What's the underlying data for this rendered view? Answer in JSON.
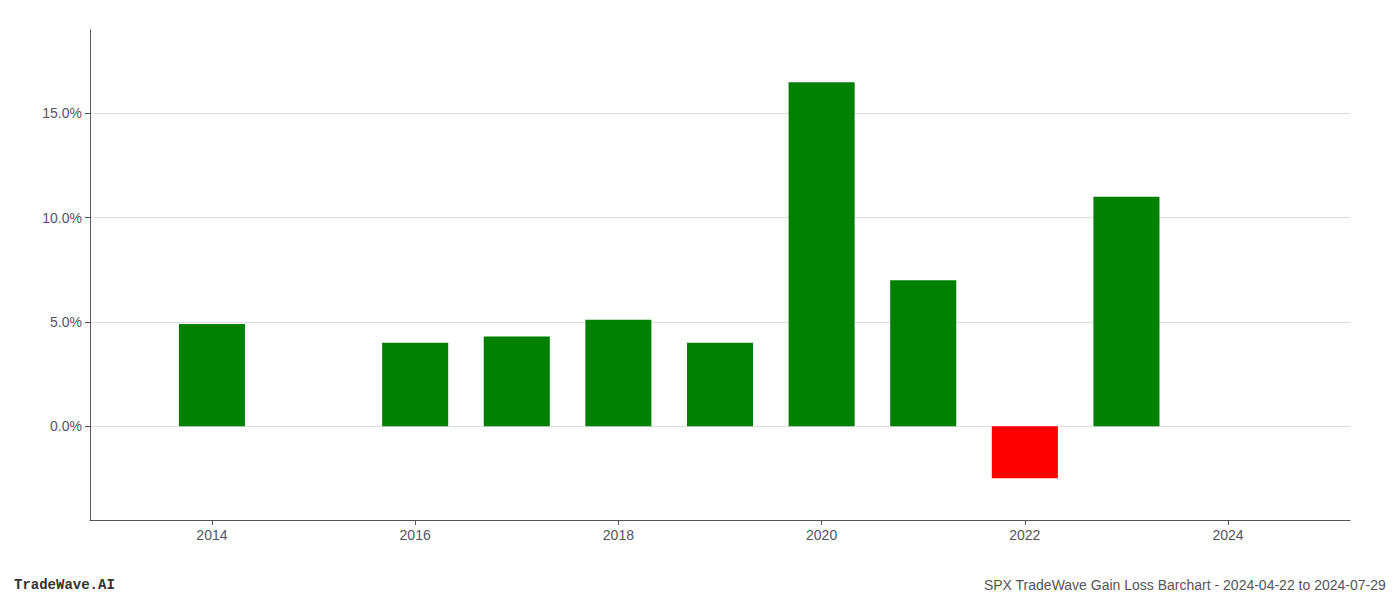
{
  "chart_data": {
    "type": "bar",
    "x": [
      2014,
      2016,
      2017,
      2018,
      2019,
      2020,
      2021,
      2022,
      2023
    ],
    "values": [
      4.9,
      4.0,
      4.3,
      5.1,
      4.0,
      16.5,
      7.0,
      -2.5,
      11.0
    ],
    "colors": [
      "#008000",
      "#008000",
      "#008000",
      "#008000",
      "#008000",
      "#008000",
      "#008000",
      "#ff0000",
      "#008000"
    ],
    "xlim": [
      2012.8,
      2025.2
    ],
    "xticks": [
      2014,
      2016,
      2018,
      2020,
      2022,
      2024
    ],
    "ylim": [
      -4.5,
      19.0
    ],
    "yticks": [
      {
        "value": 0.0,
        "label": "0.0%"
      },
      {
        "value": 5.0,
        "label": "5.0%"
      },
      {
        "value": 10.0,
        "label": "10.0%"
      },
      {
        "value": 15.0,
        "label": "15.0%"
      }
    ],
    "grid": true,
    "annotations": [
      "TradeWave.AI",
      "SPX TradeWave Gain Loss Barchart - 2024-04-22 to 2024-07-29"
    ]
  }
}
